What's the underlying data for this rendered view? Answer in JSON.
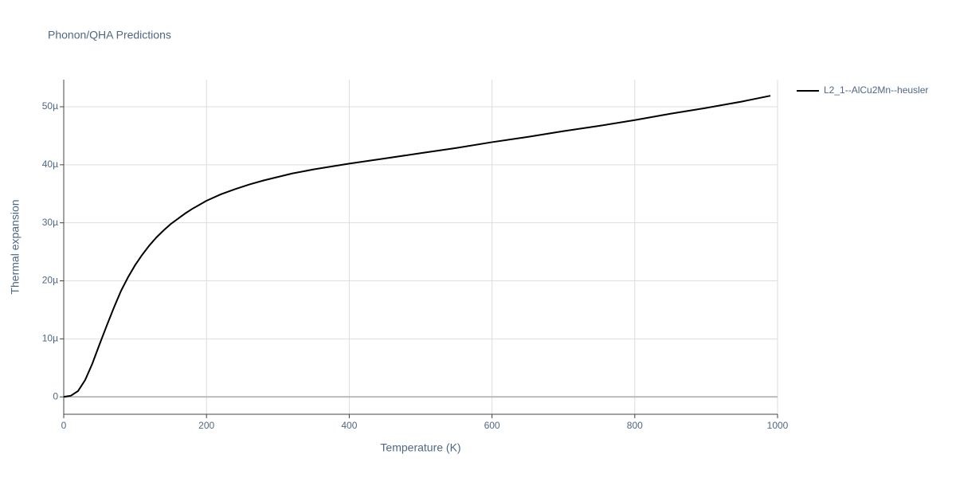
{
  "chart_data": {
    "type": "line",
    "title": "Phonon/QHA Predictions",
    "x_label": "Temperature (K)",
    "y_label": "Thermal expansion",
    "x": [
      0,
      10,
      20,
      30,
      40,
      50,
      60,
      70,
      80,
      90,
      100,
      110,
      120,
      130,
      140,
      150,
      160,
      170,
      180,
      190,
      200,
      220,
      240,
      260,
      280,
      300,
      320,
      350,
      400,
      450,
      500,
      550,
      600,
      650,
      700,
      750,
      800,
      850,
      900,
      950,
      990
    ],
    "series": [
      {
        "name": "L2_1--AlCu2Mn--heusler",
        "color": "#000000",
        "values": [
          0,
          2e-07,
          1e-06,
          2.9e-06,
          5.7e-06,
          9e-06,
          1.22e-05,
          1.53e-05,
          1.82e-05,
          2.06e-05,
          2.27e-05,
          2.45e-05,
          2.61e-05,
          2.75e-05,
          2.87e-05,
          2.98e-05,
          3.07e-05,
          3.16e-05,
          3.24e-05,
          3.31e-05,
          3.38e-05,
          3.49e-05,
          3.58e-05,
          3.66e-05,
          3.73e-05,
          3.79e-05,
          3.85e-05,
          3.92e-05,
          4.02e-05,
          4.11e-05,
          4.2e-05,
          4.29e-05,
          4.39e-05,
          4.48e-05,
          4.58e-05,
          4.67e-05,
          4.77e-05,
          4.88e-05,
          4.98e-05,
          5.09e-05,
          5.19e-05
        ]
      }
    ],
    "xlim": [
      0,
      1000
    ],
    "xticks": [
      0,
      200,
      400,
      600,
      800,
      1000
    ],
    "ylim": [
      -3e-06,
      5.467e-05
    ],
    "yticks": [
      0,
      {
        "value": 1e-05,
        "label": "10µ"
      },
      {
        "value": 2e-05,
        "label": "20µ"
      },
      {
        "value": 3e-05,
        "label": "30µ"
      },
      {
        "value": 4e-05,
        "label": "40µ"
      },
      {
        "value": 5e-05,
        "label": "50µ"
      }
    ],
    "grid": true,
    "legend": "right"
  }
}
